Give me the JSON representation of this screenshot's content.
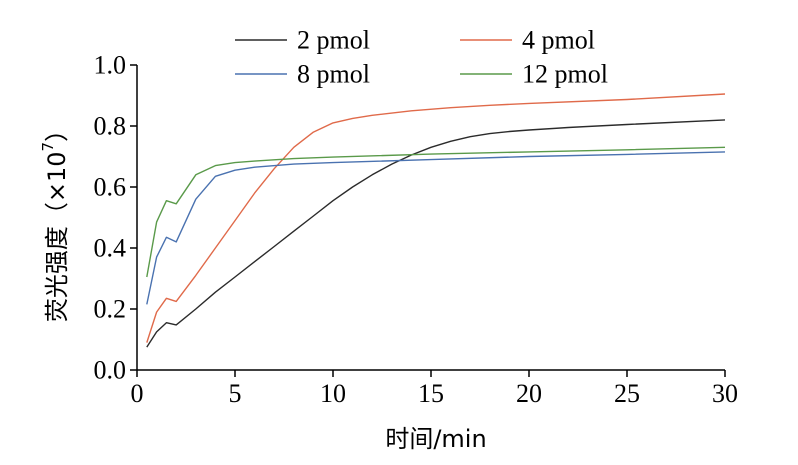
{
  "chart_data": {
    "type": "line",
    "title": "",
    "xlabel": "时间/min",
    "ylabel_prefix": "荧光强度（×10",
    "ylabel_exponent": "7",
    "ylabel_suffix": "）",
    "xlim": [
      0,
      30
    ],
    "ylim": [
      0,
      1.0
    ],
    "x_ticks": [
      "0",
      "5",
      "10",
      "15",
      "20",
      "25",
      "30"
    ],
    "y_ticks": [
      "0.0",
      "0.2",
      "0.4",
      "0.6",
      "0.8",
      "1.0"
    ],
    "grid": false,
    "legend_position": "top",
    "series": [
      {
        "name": "2 pmol",
        "color": "#2b2b2b",
        "x": [
          0.5,
          1,
          1.5,
          2,
          3,
          4,
          5,
          6,
          7,
          8,
          9,
          10,
          11,
          12,
          13,
          14,
          15,
          16,
          17,
          18,
          19,
          20,
          22,
          25,
          30
        ],
        "y": [
          0.075,
          0.125,
          0.155,
          0.148,
          0.2,
          0.255,
          0.305,
          0.355,
          0.405,
          0.455,
          0.505,
          0.555,
          0.6,
          0.64,
          0.675,
          0.705,
          0.73,
          0.75,
          0.765,
          0.775,
          0.782,
          0.787,
          0.795,
          0.805,
          0.82
        ]
      },
      {
        "name": "4 pmol",
        "color": "#e06a4a",
        "x": [
          0.5,
          1,
          1.5,
          2,
          3,
          4,
          5,
          6,
          7,
          8,
          9,
          10,
          11,
          12,
          14,
          16,
          18,
          20,
          25,
          30
        ],
        "y": [
          0.09,
          0.19,
          0.235,
          0.225,
          0.31,
          0.4,
          0.49,
          0.58,
          0.66,
          0.73,
          0.78,
          0.81,
          0.825,
          0.835,
          0.85,
          0.86,
          0.868,
          0.874,
          0.887,
          0.905
        ]
      },
      {
        "name": "8 pmol",
        "color": "#4a72b0",
        "x": [
          0.5,
          1,
          1.5,
          2,
          3,
          4,
          5,
          6,
          8,
          10,
          15,
          20,
          25,
          30
        ],
        "y": [
          0.215,
          0.37,
          0.435,
          0.42,
          0.56,
          0.635,
          0.655,
          0.665,
          0.675,
          0.68,
          0.69,
          0.7,
          0.707,
          0.715
        ]
      },
      {
        "name": "12 pmol",
        "color": "#5a9a4a",
        "x": [
          0.5,
          1,
          1.5,
          2,
          3,
          4,
          5,
          6,
          8,
          10,
          15,
          20,
          25,
          30
        ],
        "y": [
          0.305,
          0.485,
          0.555,
          0.545,
          0.64,
          0.67,
          0.68,
          0.685,
          0.693,
          0.698,
          0.708,
          0.715,
          0.722,
          0.73
        ]
      }
    ]
  }
}
